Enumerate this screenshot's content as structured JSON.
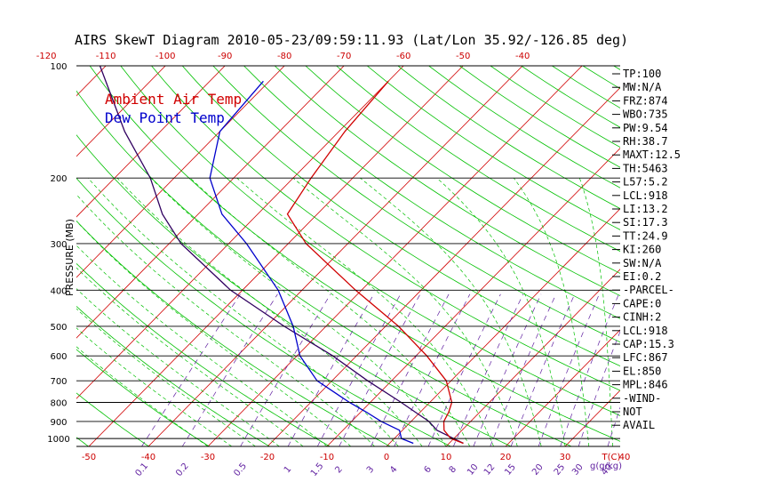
{
  "title": "AIRS SkewT Diagram 2010-05-23/09:59:11.93 (Lat/Lon 35.92/-126.85 deg)",
  "colors": {
    "temp": "#d00000",
    "dew": "#0000cc",
    "parcel": "#300060",
    "isotherm": "#d00000",
    "dry_adiabat": "#00c000",
    "moist_adiabat": "#00c000",
    "mixing_ratio": "#6020a0",
    "isobar": "#000000",
    "tick_label": "#cc0000",
    "mix_label": "#6020a0"
  },
  "legend": {
    "temp_label": "Ambient Air Temp",
    "dew_label": "Dew Point Temp"
  },
  "chart_data": {
    "type": "line",
    "title": "AIRS SkewT Diagram 2010-05-23/09:59:11.93 (Lat/Lon 35.92/-126.85 deg)",
    "xlabel": "T(C)",
    "ylabel": "PRESSURE (MB)",
    "y_scale": "log",
    "ylim": [
      1050,
      100
    ],
    "pressure_levels": [
      100,
      200,
      300,
      400,
      500,
      600,
      700,
      800,
      900,
      1000
    ],
    "bottom_temp_ticks": [
      -50,
      -40,
      -30,
      -20,
      -10,
      0,
      10,
      20,
      30,
      40
    ],
    "top_temp_ticks": [
      -120,
      -110,
      -100,
      -90,
      -80,
      -70,
      -60,
      -50,
      -40
    ],
    "mixing_ratio_labels": [
      "0.1",
      "0.2",
      "0.5",
      "1",
      "1.5",
      "2",
      "3",
      "4",
      "6",
      "8",
      "10",
      "12",
      "15",
      "20",
      "25",
      "30",
      "40"
    ],
    "mixing_ratio_unit": "g(g/kg)",
    "series": [
      {
        "name": "Ambient Air Temp",
        "pressure": [
          1030,
          1000,
          950,
          900,
          850,
          800,
          700,
          600,
          500,
          400,
          300,
          250,
          200,
          150,
          110
        ],
        "temp_c": [
          12.4,
          9.5,
          7.0,
          5.5,
          4.8,
          3.7,
          -0.8,
          -8.2,
          -17.8,
          -31,
          -47,
          -55,
          -57,
          -59,
          -60
        ]
      },
      {
        "name": "Dew Point Temp",
        "pressure": [
          1030,
          1000,
          950,
          900,
          850,
          800,
          700,
          600,
          500,
          400,
          300,
          250,
          200,
          150,
          110
        ],
        "temp_c": [
          4.0,
          1.2,
          -0.5,
          -5.0,
          -9.0,
          -13.5,
          -22.5,
          -29.5,
          -35.5,
          -44.0,
          -57.0,
          -66.0,
          -74.0,
          -80.0,
          -81.0
        ]
      }
    ],
    "parcel_curve": {
      "pressure": [
        1030,
        950,
        900,
        850,
        800,
        700,
        600,
        500,
        400,
        300,
        250,
        200,
        150,
        100
      ],
      "temp_c": [
        12.4,
        5.8,
        3.0,
        -0.8,
        -4.8,
        -14.0,
        -24.0,
        -37.0,
        -52.0,
        -68.0,
        -76.0,
        -84.0,
        -96.0,
        -111.0
      ]
    }
  },
  "indices": [
    "TP:100",
    "MW:N/A",
    "FRZ:874",
    "WBO:735",
    "PW:9.54",
    "RH:38.7",
    "MAXT:12.5",
    "TH:5463",
    "L57:5.2",
    "LCL:918",
    "LI:13.2",
    "SI:17.3",
    "TT:24.9",
    "KI:260",
    "SW:N/A",
    "EI:0.2",
    "-PARCEL-",
    "CAPE:0",
    "CINH:2",
    "LCL:918",
    "CAP:15.3",
    "LFC:867",
    "EL:850",
    "MPL:846",
    "-WIND-",
    "NOT",
    "AVAIL"
  ]
}
